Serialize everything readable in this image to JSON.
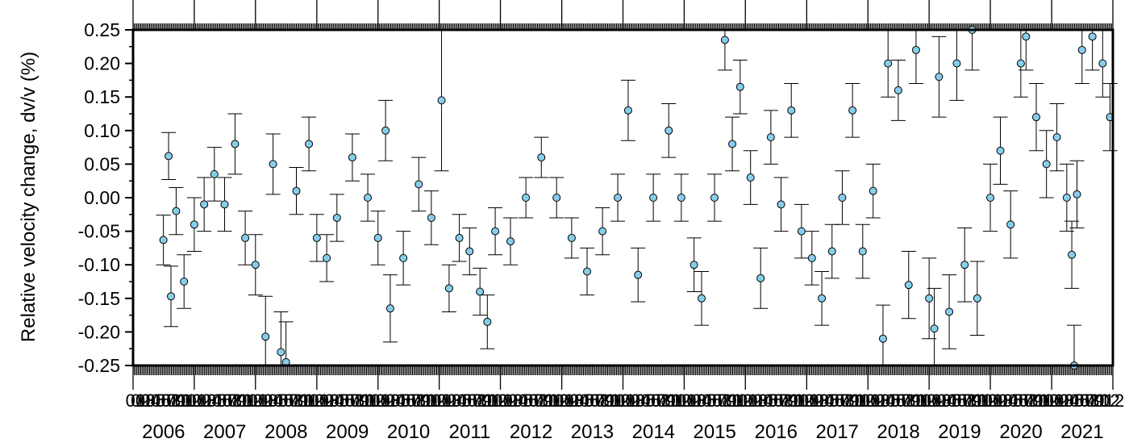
{
  "chart_data": {
    "type": "scatter",
    "title": "",
    "xlabel": "",
    "ylabel": "Relative velocity change, dv/v (%)",
    "xlim": [
      "2006-01-01",
      "2022-01-01"
    ],
    "ylim": [
      -0.25,
      0.25
    ],
    "yticks": [
      "0.25",
      "0.20",
      "0.15",
      "0.10",
      "0.05",
      "0.00",
      "-0.05",
      "-0.10",
      "-0.15",
      "-0.20",
      "-0.25"
    ],
    "year_ticks": [
      "2006",
      "2007",
      "2008",
      "2009",
      "2010",
      "2011",
      "2012",
      "2013",
      "2014",
      "2015",
      "2016",
      "2017",
      "2018",
      "2019",
      "2020",
      "2021"
    ],
    "month_tick_labels": [
      "01",
      "02",
      "03",
      "04",
      "05",
      "06",
      "07",
      "08",
      "09",
      "10",
      "11",
      "12"
    ],
    "last_month_label": "12",
    "grid": false,
    "marker_fill": "#87ceeb",
    "marker_edge": "#000000",
    "errorbar_color": "#000000",
    "series": [
      {
        "points": [
          {
            "x": "2006-07-01",
            "y": -0.063,
            "err": 0.037
          },
          {
            "x": "2006-08-01",
            "y": 0.062,
            "err": 0.035
          },
          {
            "x": "2006-08-15",
            "y": -0.147,
            "err": 0.045
          },
          {
            "x": "2006-09-15",
            "y": -0.02,
            "err": 0.035
          },
          {
            "x": "2006-11-01",
            "y": -0.125,
            "err": 0.04
          },
          {
            "x": "2007-01-01",
            "y": -0.04,
            "err": 0.04
          },
          {
            "x": "2007-03-01",
            "y": -0.01,
            "err": 0.04
          },
          {
            "x": "2007-05-01",
            "y": 0.035,
            "err": 0.04
          },
          {
            "x": "2007-07-01",
            "y": -0.01,
            "err": 0.04
          },
          {
            "x": "2007-09-01",
            "y": 0.08,
            "err": 0.045
          },
          {
            "x": "2007-11-01",
            "y": -0.06,
            "err": 0.04
          },
          {
            "x": "2008-01-01",
            "y": -0.1,
            "err": 0.045
          },
          {
            "x": "2008-03-01",
            "y": -0.207,
            "err": 0.06
          },
          {
            "x": "2008-04-15",
            "y": 0.05,
            "err": 0.045
          },
          {
            "x": "2008-06-01",
            "y": -0.23,
            "err": 0.06
          },
          {
            "x": "2008-07-01",
            "y": -0.245,
            "err": 0.06
          },
          {
            "x": "2008-09-01",
            "y": 0.01,
            "err": 0.035
          },
          {
            "x": "2008-11-15",
            "y": 0.08,
            "err": 0.04
          },
          {
            "x": "2009-01-01",
            "y": -0.06,
            "err": 0.035
          },
          {
            "x": "2009-03-01",
            "y": -0.09,
            "err": 0.035
          },
          {
            "x": "2009-05-01",
            "y": -0.03,
            "err": 0.035
          },
          {
            "x": "2009-08-01",
            "y": 0.06,
            "err": 0.035
          },
          {
            "x": "2009-11-01",
            "y": 0.0,
            "err": 0.035
          },
          {
            "x": "2010-01-01",
            "y": -0.06,
            "err": 0.04
          },
          {
            "x": "2010-02-15",
            "y": 0.1,
            "err": 0.045
          },
          {
            "x": "2010-03-15",
            "y": -0.165,
            "err": 0.05
          },
          {
            "x": "2010-06-01",
            "y": -0.09,
            "err": 0.04
          },
          {
            "x": "2010-09-01",
            "y": 0.02,
            "err": 0.04
          },
          {
            "x": "2010-11-15",
            "y": -0.03,
            "err": 0.04
          },
          {
            "x": "2011-01-15",
            "y": 0.145,
            "err": 0.105
          },
          {
            "x": "2011-03-01",
            "y": -0.135,
            "err": 0.035
          },
          {
            "x": "2011-05-01",
            "y": -0.06,
            "err": 0.035
          },
          {
            "x": "2011-07-01",
            "y": -0.08,
            "err": 0.035
          },
          {
            "x": "2011-09-01",
            "y": -0.14,
            "err": 0.035
          },
          {
            "x": "2011-10-15",
            "y": -0.185,
            "err": 0.04
          },
          {
            "x": "2011-12-01",
            "y": -0.05,
            "err": 0.035
          },
          {
            "x": "2012-03-01",
            "y": -0.065,
            "err": 0.035
          },
          {
            "x": "2012-06-01",
            "y": 0.0,
            "err": 0.03
          },
          {
            "x": "2012-09-01",
            "y": 0.06,
            "err": 0.03
          },
          {
            "x": "2012-12-01",
            "y": 0.0,
            "err": 0.03
          },
          {
            "x": "2013-03-01",
            "y": -0.06,
            "err": 0.03
          },
          {
            "x": "2013-06-01",
            "y": -0.11,
            "err": 0.035
          },
          {
            "x": "2013-09-01",
            "y": -0.05,
            "err": 0.035
          },
          {
            "x": "2013-12-01",
            "y": 0.0,
            "err": 0.035
          },
          {
            "x": "2014-02-01",
            "y": 0.13,
            "err": 0.045
          },
          {
            "x": "2014-04-01",
            "y": -0.115,
            "err": 0.04
          },
          {
            "x": "2014-07-01",
            "y": 0.0,
            "err": 0.035
          },
          {
            "x": "2014-10-01",
            "y": 0.1,
            "err": 0.04
          },
          {
            "x": "2014-12-15",
            "y": 0.0,
            "err": 0.035
          },
          {
            "x": "2015-03-01",
            "y": -0.1,
            "err": 0.04
          },
          {
            "x": "2015-04-15",
            "y": -0.15,
            "err": 0.04
          },
          {
            "x": "2015-07-01",
            "y": 0.0,
            "err": 0.035
          },
          {
            "x": "2015-09-01",
            "y": 0.235,
            "err": 0.045
          },
          {
            "x": "2015-10-15",
            "y": 0.08,
            "err": 0.04
          },
          {
            "x": "2015-12-01",
            "y": 0.165,
            "err": 0.04
          },
          {
            "x": "2016-02-01",
            "y": 0.03,
            "err": 0.04
          },
          {
            "x": "2016-04-01",
            "y": -0.12,
            "err": 0.045
          },
          {
            "x": "2016-06-01",
            "y": 0.09,
            "err": 0.04
          },
          {
            "x": "2016-08-01",
            "y": -0.01,
            "err": 0.04
          },
          {
            "x": "2016-10-01",
            "y": 0.13,
            "err": 0.04
          },
          {
            "x": "2016-12-01",
            "y": -0.05,
            "err": 0.04
          },
          {
            "x": "2017-02-01",
            "y": -0.09,
            "err": 0.04
          },
          {
            "x": "2017-04-01",
            "y": -0.15,
            "err": 0.04
          },
          {
            "x": "2017-06-01",
            "y": -0.08,
            "err": 0.04
          },
          {
            "x": "2017-08-01",
            "y": 0.0,
            "err": 0.04
          },
          {
            "x": "2017-10-01",
            "y": 0.13,
            "err": 0.04
          },
          {
            "x": "2017-12-01",
            "y": -0.08,
            "err": 0.04
          },
          {
            "x": "2018-02-01",
            "y": 0.01,
            "err": 0.04
          },
          {
            "x": "2018-04-01",
            "y": -0.21,
            "err": 0.05
          },
          {
            "x": "2018-05-01",
            "y": 0.2,
            "err": 0.05
          },
          {
            "x": "2018-07-01",
            "y": 0.16,
            "err": 0.045
          },
          {
            "x": "2018-09-01",
            "y": -0.13,
            "err": 0.05
          },
          {
            "x": "2018-10-15",
            "y": 0.22,
            "err": 0.05
          },
          {
            "x": "2019-01-01",
            "y": -0.15,
            "err": 0.06
          },
          {
            "x": "2019-02-01",
            "y": -0.195,
            "err": 0.06
          },
          {
            "x": "2019-03-01",
            "y": 0.18,
            "err": 0.06
          },
          {
            "x": "2019-05-01",
            "y": -0.17,
            "err": 0.055
          },
          {
            "x": "2019-06-15",
            "y": 0.2,
            "err": 0.055
          },
          {
            "x": "2019-08-01",
            "y": -0.1,
            "err": 0.055
          },
          {
            "x": "2019-09-15",
            "y": 0.25,
            "err": 0.06
          },
          {
            "x": "2019-10-15",
            "y": -0.15,
            "err": 0.055
          },
          {
            "x": "2020-01-01",
            "y": 0.0,
            "err": 0.05
          },
          {
            "x": "2020-03-01",
            "y": 0.07,
            "err": 0.05
          },
          {
            "x": "2020-05-01",
            "y": -0.04,
            "err": 0.05
          },
          {
            "x": "2020-07-01",
            "y": 0.2,
            "err": 0.05
          },
          {
            "x": "2020-08-01",
            "y": 0.24,
            "err": 0.05
          },
          {
            "x": "2020-10-01",
            "y": 0.12,
            "err": 0.05
          },
          {
            "x": "2020-12-01",
            "y": 0.05,
            "err": 0.05
          },
          {
            "x": "2021-02-01",
            "y": 0.09,
            "err": 0.05
          },
          {
            "x": "2021-04-01",
            "y": 0.0,
            "err": 0.05
          },
          {
            "x": "2021-05-01",
            "y": -0.085,
            "err": 0.05
          },
          {
            "x": "2021-05-15",
            "y": -0.25,
            "err": 0.06
          },
          {
            "x": "2021-06-01",
            "y": 0.005,
            "err": 0.05
          },
          {
            "x": "2021-07-01",
            "y": 0.22,
            "err": 0.05
          },
          {
            "x": "2021-09-01",
            "y": 0.24,
            "err": 0.05
          },
          {
            "x": "2021-11-01",
            "y": 0.2,
            "err": 0.05
          },
          {
            "x": "2021-12-15",
            "y": 0.12,
            "err": 0.05
          }
        ]
      }
    ]
  }
}
